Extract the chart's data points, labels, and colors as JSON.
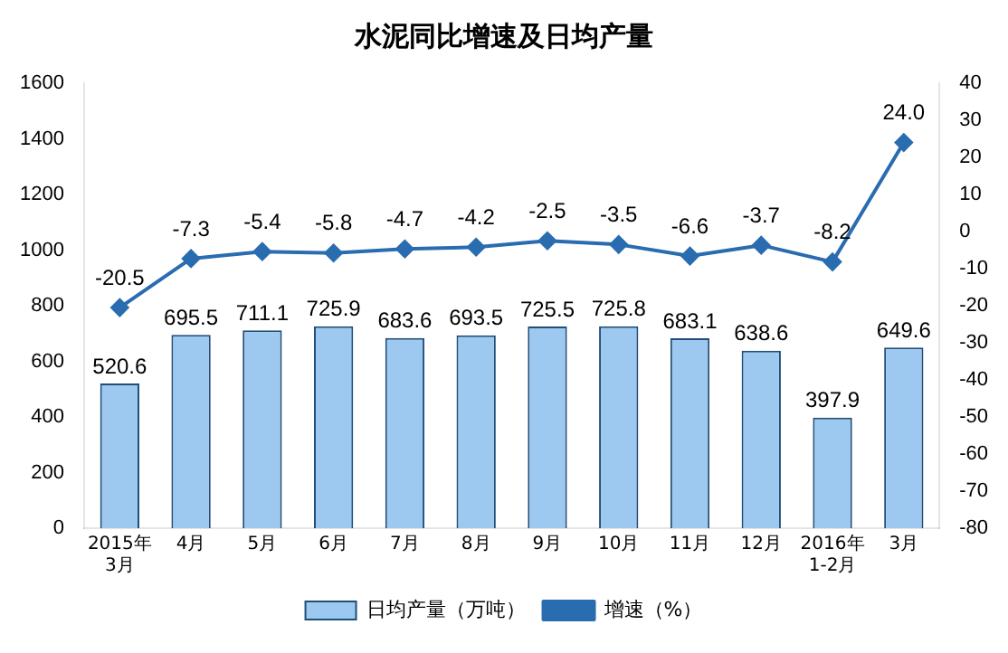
{
  "chart_data": {
    "type": "bar",
    "title": "水泥同比增速及日均产量",
    "categories": [
      "2015年\n3月",
      "4月",
      "5月",
      "6月",
      "7月",
      "8月",
      "9月",
      "10月",
      "11月",
      "12月",
      "2016年\n1-2月",
      "3月"
    ],
    "series": [
      {
        "name": "日均产量（万吨）",
        "color": "#9dc8f0",
        "values": [
          520.6,
          695.5,
          711.1,
          725.9,
          683.6,
          693.5,
          725.5,
          725.8,
          683.1,
          638.6,
          397.9,
          649.6
        ],
        "value_labels": [
          "520.6",
          "695.5",
          "711.1",
          "725.9",
          "683.6",
          "693.5",
          "725.5",
          "725.8",
          "683.1",
          "638.6",
          "397.9",
          "649.6"
        ]
      },
      {
        "name": "增速（%）",
        "type": "line",
        "axis": "y2",
        "color": "#2a6cb0",
        "marker": "diamond",
        "values": [
          -20.5,
          -7.3,
          -5.4,
          -5.8,
          -4.7,
          -4.2,
          -2.5,
          -3.5,
          -6.6,
          -3.7,
          -8.2,
          24.0
        ],
        "value_labels": [
          "-20.5",
          "-7.3",
          "-5.4",
          "-5.8",
          "-4.7",
          "-4.2",
          "-2.5",
          "-3.5",
          "-6.6",
          "-3.7",
          "-8.2",
          "24.0"
        ]
      }
    ],
    "ylim": [
      0,
      1600
    ],
    "yticks": [
      0,
      200,
      400,
      600,
      800,
      1000,
      1200,
      1400,
      1600
    ],
    "y2lim": [
      -80,
      40
    ],
    "y2ticks": [
      -80,
      -70,
      -60,
      -50,
      -40,
      -30,
      -20,
      -10,
      0,
      10,
      20,
      30,
      40
    ],
    "grid": false,
    "legend": "bottom"
  }
}
